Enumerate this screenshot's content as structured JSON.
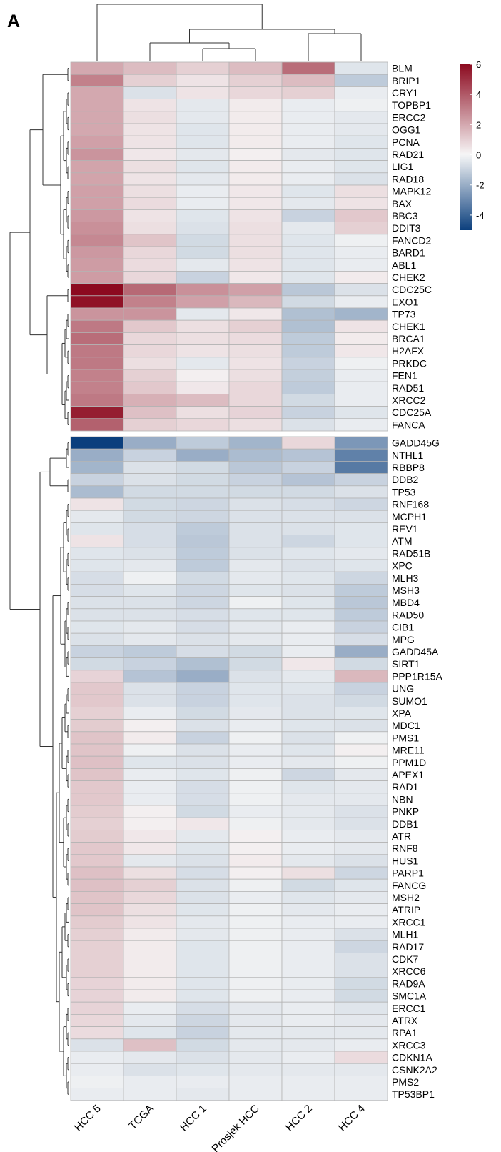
{
  "panel_label": "A",
  "chart_data": {
    "type": "heatmap",
    "columns": [
      "HCC 5",
      "TCGA",
      "HCC 1",
      "Prosjek HCC",
      "HCC 2",
      "HCC 4"
    ],
    "colorscale": {
      "min": -5,
      "max": 6,
      "ticks": [
        6,
        4,
        2,
        0,
        -2,
        -4
      ],
      "colors": {
        "low": "#0b3f7d",
        "mid": "#f7f7f7",
        "high": "#8c0a1f"
      }
    },
    "row_groups": [
      {
        "rows": [
          {
            "gene": "BLM",
            "values": [
              2.0,
              1.5,
              1.0,
              1.5,
              3.5,
              -0.5
            ]
          },
          {
            "gene": "BRIP1",
            "values": [
              3.0,
              1.0,
              0.5,
              1.0,
              1.5,
              -1.2
            ]
          },
          {
            "gene": "CRY1",
            "values": [
              2.0,
              -0.6,
              0.5,
              0.8,
              1.0,
              -0.3
            ]
          },
          {
            "gene": "TOPBP1",
            "values": [
              2.0,
              0.5,
              -0.4,
              0.3,
              -0.3,
              -0.2
            ]
          },
          {
            "gene": "ERCC2",
            "values": [
              2.0,
              0.6,
              -0.4,
              0.3,
              -0.3,
              -0.4
            ]
          },
          {
            "gene": "OGG1",
            "values": [
              2.0,
              0.5,
              -0.5,
              0.3,
              -0.3,
              -0.4
            ]
          },
          {
            "gene": "PCNA",
            "values": [
              2.2,
              0.5,
              -0.5,
              0.3,
              -0.3,
              -0.5
            ]
          },
          {
            "gene": "RAD21",
            "values": [
              2.5,
              0.4,
              -0.4,
              0.2,
              -0.4,
              -0.5
            ]
          },
          {
            "gene": "LIG1",
            "values": [
              2.1,
              0.6,
              -0.5,
              0.3,
              -0.3,
              -0.5
            ]
          },
          {
            "gene": "RAD18",
            "values": [
              2.1,
              0.5,
              -0.4,
              0.3,
              -0.3,
              -0.6
            ]
          },
          {
            "gene": "MAPK12",
            "values": [
              2.2,
              0.6,
              -0.3,
              0.4,
              -0.5,
              0.6
            ]
          },
          {
            "gene": "BAX",
            "values": [
              2.2,
              0.7,
              -0.3,
              0.4,
              -0.4,
              0.5
            ]
          },
          {
            "gene": "BBC3",
            "values": [
              2.4,
              0.5,
              -0.5,
              0.5,
              -1.0,
              1.2
            ]
          },
          {
            "gene": "DDIT3",
            "values": [
              2.6,
              0.6,
              -0.6,
              0.6,
              -0.4,
              1.0
            ]
          },
          {
            "gene": "FANCD2",
            "values": [
              2.8,
              1.3,
              -0.8,
              0.6,
              -0.5,
              -0.2
            ]
          },
          {
            "gene": "BARD1",
            "values": [
              2.4,
              0.8,
              -0.8,
              0.6,
              -0.5,
              -0.3
            ]
          },
          {
            "gene": "ABL1",
            "values": [
              2.3,
              0.7,
              -0.4,
              0.5,
              -0.5,
              -0.3
            ]
          },
          {
            "gene": "CHEK2",
            "values": [
              2.3,
              0.8,
              -1.0,
              0.4,
              -0.5,
              0.3
            ]
          },
          {
            "gene": "CDC25C",
            "values": [
              6.0,
              3.6,
              2.6,
              2.2,
              -1.3,
              -0.6
            ]
          },
          {
            "gene": "EXO1",
            "values": [
              5.8,
              3.0,
              2.2,
              1.6,
              -0.8,
              -0.3
            ]
          },
          {
            "gene": "TP73",
            "values": [
              2.5,
              2.5,
              -0.4,
              0.4,
              -1.5,
              -1.8
            ]
          },
          {
            "gene": "CHEK1",
            "values": [
              3.2,
              1.2,
              0.6,
              1.0,
              -1.5,
              0.5
            ]
          },
          {
            "gene": "BRCA1",
            "values": [
              3.5,
              0.8,
              0.6,
              0.7,
              -1.2,
              0.3
            ]
          },
          {
            "gene": "H2AFX",
            "values": [
              3.2,
              0.8,
              0.5,
              0.6,
              -1.2,
              0.4
            ]
          },
          {
            "gene": "PRKDC",
            "values": [
              3.2,
              0.6,
              -0.4,
              0.5,
              -1.0,
              -0.2
            ]
          },
          {
            "gene": "FEN1",
            "values": [
              3.0,
              1.0,
              0.2,
              0.6,
              -1.1,
              -0.3
            ]
          },
          {
            "gene": "RAD51",
            "values": [
              3.0,
              1.2,
              0.4,
              0.8,
              -1.2,
              -0.3
            ]
          },
          {
            "gene": "XRCC2",
            "values": [
              3.2,
              1.8,
              1.5,
              0.8,
              -0.8,
              -0.3
            ]
          },
          {
            "gene": "CDC25A",
            "values": [
              5.5,
              1.4,
              0.6,
              0.9,
              -1.0,
              -0.5
            ]
          },
          {
            "gene": "FANCA",
            "values": [
              3.8,
              1.0,
              0.8,
              0.6,
              -0.6,
              -0.3
            ]
          }
        ]
      },
      {
        "rows": [
          {
            "gene": "GADD45G",
            "values": [
              -5.0,
              -2.0,
              -1.2,
              -1.8,
              0.8,
              -2.6
            ]
          },
          {
            "gene": "NTHL1",
            "values": [
              -2.0,
              -1.0,
              -2.0,
              -1.6,
              -1.4,
              -3.2
            ]
          },
          {
            "gene": "RBBP8",
            "values": [
              -1.8,
              -0.6,
              -0.8,
              -1.3,
              -1.0,
              -3.4
            ]
          },
          {
            "gene": "DDB2",
            "values": [
              -1.0,
              -0.6,
              -0.8,
              -1.0,
              -1.4,
              -1.0
            ]
          },
          {
            "gene": "TP53",
            "values": [
              -1.6,
              -0.8,
              -0.8,
              -0.8,
              -0.8,
              -0.6
            ]
          },
          {
            "gene": "RNF168",
            "values": [
              0.5,
              -0.8,
              -0.9,
              -0.6,
              -0.7,
              -0.9
            ]
          },
          {
            "gene": "MCPH1",
            "values": [
              -0.4,
              -0.8,
              -0.9,
              -0.6,
              -0.6,
              -0.6
            ]
          },
          {
            "gene": "REV1",
            "values": [
              -0.5,
              -0.7,
              -1.2,
              -0.6,
              -0.6,
              -0.5
            ]
          },
          {
            "gene": "ATM",
            "values": [
              0.5,
              -0.7,
              -1.3,
              -0.6,
              -0.9,
              -0.5
            ]
          },
          {
            "gene": "RAD51B",
            "values": [
              -0.5,
              -0.6,
              -1.2,
              -0.6,
              -0.5,
              -0.4
            ]
          },
          {
            "gene": "XPC",
            "values": [
              -0.5,
              -0.4,
              -1.2,
              -0.4,
              -0.6,
              -0.5
            ]
          },
          {
            "gene": "MLH3",
            "values": [
              -0.7,
              -0.2,
              -0.8,
              -0.4,
              -0.5,
              -0.9
            ]
          },
          {
            "gene": "MSH3",
            "values": [
              -0.7,
              -0.5,
              -0.9,
              -0.5,
              -0.6,
              -1.2
            ]
          },
          {
            "gene": "MBD4",
            "values": [
              -0.6,
              -0.6,
              -0.9,
              -0.2,
              -0.5,
              -1.3
            ]
          },
          {
            "gene": "RAD50",
            "values": [
              -0.6,
              -0.6,
              -0.7,
              -0.5,
              -0.5,
              -1.2
            ]
          },
          {
            "gene": "CIB1",
            "values": [
              -0.5,
              -0.4,
              -0.7,
              -0.4,
              -0.3,
              -1.0
            ]
          },
          {
            "gene": "MPG",
            "values": [
              -0.6,
              -0.4,
              -0.6,
              -0.4,
              -0.3,
              -0.7
            ]
          },
          {
            "gene": "GADD45A",
            "values": [
              -1.0,
              -1.2,
              -0.7,
              -0.8,
              -0.3,
              -2.0
            ]
          },
          {
            "gene": "SIRT1",
            "values": [
              -0.8,
              -1.0,
              -1.5,
              -0.8,
              0.4,
              -0.8
            ]
          },
          {
            "gene": "PPP1R15A",
            "values": [
              0.9,
              -1.4,
              -2.0,
              -0.6,
              -0.4,
              1.6
            ]
          },
          {
            "gene": "UNG",
            "values": [
              1.2,
              -0.6,
              -1.0,
              -0.5,
              -0.5,
              -1.0
            ]
          },
          {
            "gene": "SUMO1",
            "values": [
              1.2,
              -0.6,
              -1.0,
              -0.5,
              -0.6,
              -0.8
            ]
          },
          {
            "gene": "XPA",
            "values": [
              1.0,
              -0.3,
              -0.8,
              -0.4,
              -0.6,
              -0.5
            ]
          },
          {
            "gene": "MDC1",
            "values": [
              1.1,
              0.2,
              -0.6,
              -0.3,
              -0.5,
              -0.6
            ]
          },
          {
            "gene": "PMS1",
            "values": [
              1.3,
              0.3,
              -1.0,
              -0.2,
              -0.6,
              -0.2
            ]
          },
          {
            "gene": "MRE11",
            "values": [
              1.3,
              -0.2,
              -0.6,
              -0.3,
              -0.5,
              0.2
            ]
          },
          {
            "gene": "PPM1D",
            "values": [
              1.4,
              -0.5,
              -0.6,
              -0.3,
              -0.4,
              -0.2
            ]
          },
          {
            "gene": "APEX1",
            "values": [
              1.3,
              -0.3,
              -0.5,
              -0.2,
              -0.9,
              -0.4
            ]
          },
          {
            "gene": "RAD1",
            "values": [
              1.2,
              -0.3,
              -0.7,
              -0.2,
              -0.5,
              -0.4
            ]
          },
          {
            "gene": "NBN",
            "values": [
              1.2,
              -0.3,
              -0.7,
              -0.2,
              -0.4,
              -0.4
            ]
          },
          {
            "gene": "PNKP",
            "values": [
              1.1,
              0.2,
              -0.8,
              -0.3,
              -0.4,
              -0.6
            ]
          },
          {
            "gene": "DDB1",
            "values": [
              1.0,
              0.2,
              0.4,
              -0.2,
              -0.4,
              -0.6
            ]
          },
          {
            "gene": "ATR",
            "values": [
              1.1,
              0.4,
              -0.4,
              0.2,
              -0.3,
              -0.4
            ]
          },
          {
            "gene": "RNF8",
            "values": [
              1.2,
              0.4,
              -0.5,
              0.2,
              -0.3,
              -0.4
            ]
          },
          {
            "gene": "HUS1",
            "values": [
              1.2,
              -0.4,
              -0.6,
              0.3,
              -0.4,
              -0.6
            ]
          },
          {
            "gene": "PARP1",
            "values": [
              1.4,
              0.6,
              -0.7,
              0.2,
              0.6,
              -0.9
            ]
          },
          {
            "gene": "FANCG",
            "values": [
              1.4,
              1.0,
              -0.6,
              -0.2,
              -0.8,
              -0.5
            ]
          },
          {
            "gene": "MSH2",
            "values": [
              1.3,
              0.8,
              -0.6,
              -0.3,
              -0.5,
              -0.4
            ]
          },
          {
            "gene": "ATRIP",
            "values": [
              1.3,
              0.6,
              -0.5,
              -0.2,
              -0.4,
              -0.3
            ]
          },
          {
            "gene": "XRCC1",
            "values": [
              1.1,
              0.5,
              -0.4,
              -0.2,
              -0.3,
              -0.3
            ]
          },
          {
            "gene": "MLH1",
            "values": [
              1.0,
              0.3,
              -0.4,
              -0.2,
              -0.3,
              -0.6
            ]
          },
          {
            "gene": "RAD17",
            "values": [
              1.0,
              0.3,
              -0.5,
              -0.2,
              -0.3,
              -0.9
            ]
          },
          {
            "gene": "CDK7",
            "values": [
              1.0,
              0.3,
              -0.5,
              -0.2,
              -0.3,
              -0.6
            ]
          },
          {
            "gene": "XRCC6",
            "values": [
              1.0,
              0.3,
              -0.5,
              -0.2,
              -0.3,
              -0.6
            ]
          },
          {
            "gene": "RAD9A",
            "values": [
              0.9,
              0.3,
              -0.5,
              -0.2,
              -0.3,
              -0.8
            ]
          },
          {
            "gene": "SMC1A",
            "values": [
              0.9,
              0.3,
              -0.5,
              -0.2,
              -0.3,
              -0.8
            ]
          },
          {
            "gene": "ERCC1",
            "values": [
              0.9,
              -0.3,
              -0.7,
              -0.4,
              -0.3,
              -0.5
            ]
          },
          {
            "gene": "ATRX",
            "values": [
              0.8,
              -0.4,
              -0.9,
              -0.4,
              -0.3,
              -0.4
            ]
          },
          {
            "gene": "RPA1",
            "values": [
              0.7,
              -0.5,
              -1.0,
              -0.4,
              -0.4,
              -0.4
            ]
          },
          {
            "gene": "XRCC3",
            "values": [
              -0.6,
              1.4,
              -0.8,
              -0.4,
              -0.4,
              -0.3
            ]
          },
          {
            "gene": "CDKN1A",
            "values": [
              -0.3,
              -0.4,
              -0.6,
              -0.4,
              -0.3,
              0.7
            ]
          },
          {
            "gene": "CSNK2A2",
            "values": [
              -0.3,
              -0.6,
              -0.5,
              -0.4,
              -0.4,
              -0.4
            ]
          },
          {
            "gene": "PMS2",
            "values": [
              -0.2,
              -0.3,
              -0.3,
              -0.3,
              -0.3,
              -0.3
            ]
          },
          {
            "gene": "TP53BP1",
            "values": [
              -0.3,
              -0.3,
              -0.4,
              -0.3,
              -0.3,
              -0.3
            ]
          }
        ]
      }
    ]
  }
}
